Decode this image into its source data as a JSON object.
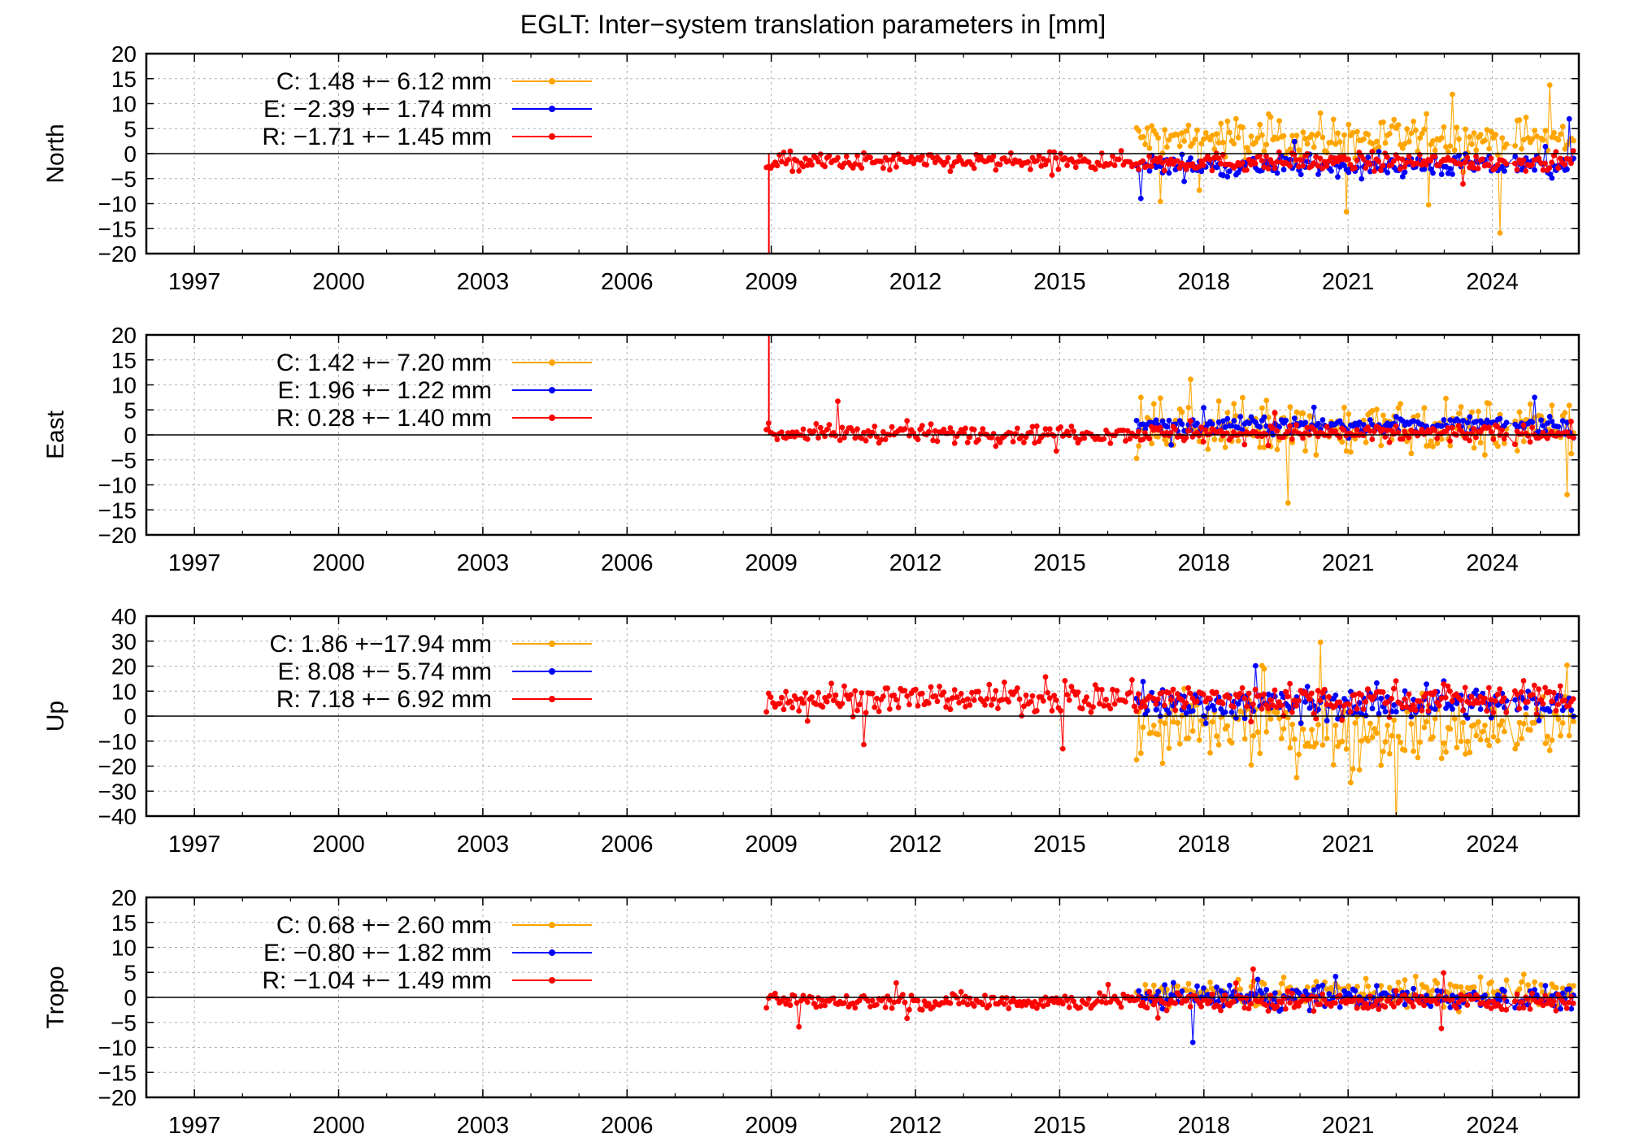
{
  "title": "EGLT: Inter−system translation parameters in [mm]",
  "colors": {
    "C": "#ffa500",
    "E": "#0000ff",
    "R": "#ff0000",
    "axis": "#000000",
    "grid": "#b0b0b0"
  },
  "chart_data": [
    {
      "type": "scatter",
      "ylabel": "North",
      "xlim": [
        1996.0,
        2025.8
      ],
      "ylim": [
        -20,
        20
      ],
      "yticks": [
        20,
        15,
        10,
        5,
        0,
        -5,
        -10,
        -15,
        -20
      ],
      "xticks": [
        1997,
        2000,
        2003,
        2006,
        2009,
        2012,
        2015,
        2018,
        2021,
        2024
      ],
      "grid": true,
      "legend_position": "top-left",
      "zero_line": true,
      "legend": [
        {
          "key": "C",
          "text": "C:   1.48 +− 6.12 mm"
        },
        {
          "key": "E",
          "text": "E:  −2.39 +− 1.74 mm"
        },
        {
          "key": "R",
          "text": "R:  −1.71 +− 1.45 mm"
        }
      ],
      "series": [
        {
          "name": "C",
          "start": 2016.6,
          "end": 2025.7,
          "mean": 3.0,
          "spread": 3.5
        },
        {
          "name": "E",
          "start": 2016.6,
          "end": 2025.7,
          "mean": -2.4,
          "spread": 1.8
        },
        {
          "name": "R",
          "start": 2008.9,
          "end": 2025.7,
          "mean": -1.7,
          "spread": 1.5
        }
      ],
      "spikes": [
        {
          "x": 2008.95,
          "y": -20,
          "series": "R"
        }
      ]
    },
    {
      "type": "scatter",
      "ylabel": "East",
      "xlim": [
        1996.0,
        2025.8
      ],
      "ylim": [
        -20,
        20
      ],
      "yticks": [
        20,
        15,
        10,
        5,
        0,
        -5,
        -10,
        -15,
        -20
      ],
      "xticks": [
        1997,
        2000,
        2003,
        2006,
        2009,
        2012,
        2015,
        2018,
        2021,
        2024
      ],
      "grid": true,
      "legend_position": "top-left",
      "zero_line": true,
      "legend": [
        {
          "key": "C",
          "text": "C:   1.42 +− 7.20 mm"
        },
        {
          "key": "E",
          "text": "E:   1.96 +− 1.22 mm"
        },
        {
          "key": "R",
          "text": "R:   0.28 +− 1.40 mm"
        }
      ],
      "series": [
        {
          "name": "C",
          "start": 2016.6,
          "end": 2025.7,
          "mean": 1.4,
          "spread": 4.5
        },
        {
          "name": "E",
          "start": 2016.6,
          "end": 2025.7,
          "mean": 2.0,
          "spread": 1.3
        },
        {
          "name": "R",
          "start": 2008.9,
          "end": 2025.7,
          "mean": 0.3,
          "spread": 1.4
        }
      ],
      "spikes": [
        {
          "x": 2008.95,
          "y": 20,
          "series": "R"
        }
      ]
    },
    {
      "type": "scatter",
      "ylabel": "Up",
      "xlim": [
        1996.0,
        2025.8
      ],
      "ylim": [
        -40,
        40
      ],
      "yticks": [
        40,
        30,
        20,
        10,
        0,
        -10,
        -20,
        -30,
        -40
      ],
      "xticks": [
        1997,
        2000,
        2003,
        2006,
        2009,
        2012,
        2015,
        2018,
        2021,
        2024
      ],
      "grid": true,
      "legend_position": "top-left",
      "zero_line": true,
      "legend": [
        {
          "key": "C",
          "text": "C:   1.86 +−17.94 mm"
        },
        {
          "key": "E",
          "text": "E:   8.08 +− 5.74 mm"
        },
        {
          "key": "R",
          "text": "R:   7.18 +− 6.92 mm"
        }
      ],
      "series": [
        {
          "name": "C",
          "start": 2016.6,
          "end": 2025.7,
          "mean": -5.0,
          "spread": 12.0
        },
        {
          "name": "E",
          "start": 2016.6,
          "end": 2025.7,
          "mean": 5.0,
          "spread": 5.0
        },
        {
          "name": "R",
          "start": 2008.9,
          "end": 2025.7,
          "mean": 7.0,
          "spread": 5.0
        }
      ],
      "spikes": []
    },
    {
      "type": "scatter",
      "ylabel": "Tropo",
      "xlim": [
        1996.0,
        2025.8
      ],
      "ylim": [
        -20,
        20
      ],
      "yticks": [
        20,
        15,
        10,
        5,
        0,
        -5,
        -10,
        -15,
        -20
      ],
      "xticks": [
        1997,
        2000,
        2003,
        2006,
        2009,
        2012,
        2015,
        2018,
        2021,
        2024
      ],
      "grid": true,
      "legend_position": "top-left",
      "zero_line": true,
      "legend": [
        {
          "key": "C",
          "text": "C:   0.68 +− 2.60 mm"
        },
        {
          "key": "E",
          "text": "E:  −0.80 +− 1.82 mm"
        },
        {
          "key": "R",
          "text": "R:  −1.04 +− 1.49 mm"
        }
      ],
      "series": [
        {
          "name": "C",
          "start": 2016.6,
          "end": 2025.7,
          "mean": 1.0,
          "spread": 2.3
        },
        {
          "name": "E",
          "start": 2016.6,
          "end": 2025.7,
          "mean": 0.0,
          "spread": 1.8
        },
        {
          "name": "R",
          "start": 2008.9,
          "end": 2025.7,
          "mean": -0.8,
          "spread": 1.4
        }
      ],
      "spikes": []
    }
  ]
}
